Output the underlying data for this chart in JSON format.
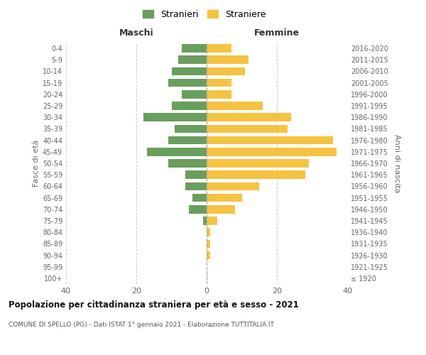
{
  "age_groups": [
    "100+",
    "95-99",
    "90-94",
    "85-89",
    "80-84",
    "75-79",
    "70-74",
    "65-69",
    "60-64",
    "55-59",
    "50-54",
    "45-49",
    "40-44",
    "35-39",
    "30-34",
    "25-29",
    "20-24",
    "15-19",
    "10-14",
    "5-9",
    "0-4"
  ],
  "birth_years": [
    "≤ 1920",
    "1921-1925",
    "1926-1930",
    "1931-1935",
    "1936-1940",
    "1941-1945",
    "1946-1950",
    "1951-1955",
    "1956-1960",
    "1961-1965",
    "1966-1970",
    "1971-1975",
    "1976-1980",
    "1981-1985",
    "1986-1990",
    "1991-1995",
    "1996-2000",
    "2001-2005",
    "2006-2010",
    "2011-2015",
    "2016-2020"
  ],
  "maschi": [
    0,
    0,
    0,
    0,
    0,
    1,
    5,
    4,
    6,
    6,
    11,
    17,
    11,
    9,
    18,
    10,
    7,
    11,
    10,
    8,
    7
  ],
  "femmine": [
    0,
    0,
    1,
    1,
    1,
    3,
    8,
    10,
    15,
    28,
    29,
    37,
    36,
    23,
    24,
    16,
    7,
    7,
    11,
    12,
    7
  ],
  "color_maschi": "#6a9e5e",
  "color_femmine": "#f5c242",
  "xlim": 40,
  "ylabel_left": "Fasce di età",
  "ylabel_right": "Anni di nascita",
  "header_left": "Maschi",
  "header_right": "Femmine",
  "title": "Popolazione per cittadinanza straniera per età e sesso - 2021",
  "subtitle": "COMUNE DI SPELLO (PG) - Dati ISTAT 1° gennaio 2021 - Elaborazione TUTTITALIA.IT",
  "legend_stranieri": "Stranieri",
  "legend_straniere": "Straniere",
  "background_color": "#ffffff",
  "grid_color": "#cccccc",
  "text_color": "#666666"
}
